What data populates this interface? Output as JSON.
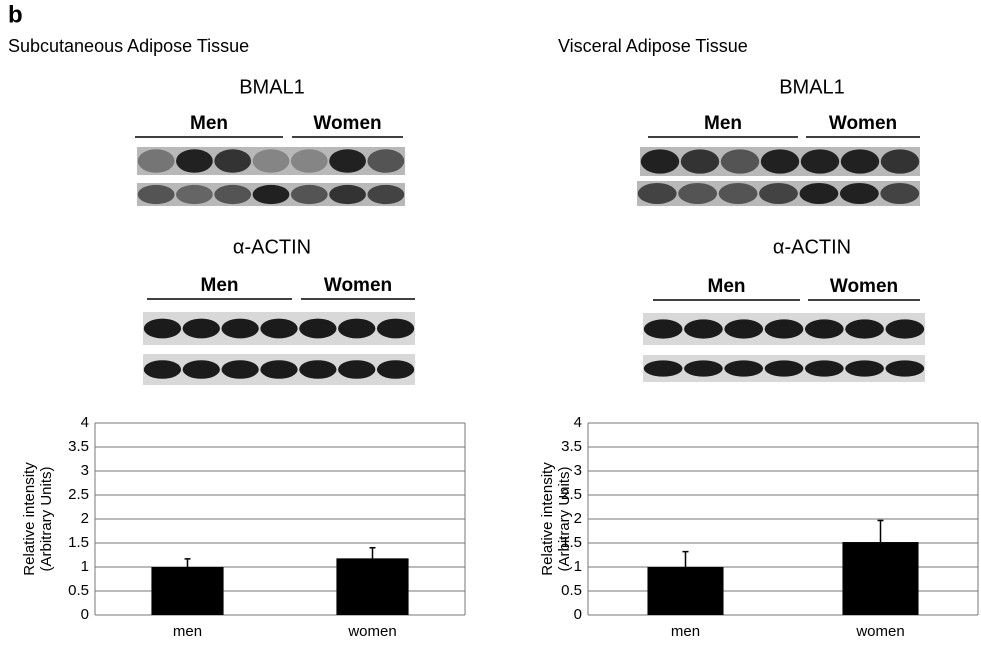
{
  "panel_label": "b",
  "sections": [
    {
      "title": "Subcutaneous Adipose Tissue",
      "blots": [
        {
          "protein": "BMAL1",
          "groups": [
            "Men",
            "Women"
          ]
        },
        {
          "protein": "α-ACTIN",
          "groups": [
            "Men",
            "Women"
          ]
        }
      ]
    },
    {
      "title": "Visceral Adipose Tissue",
      "blots": [
        {
          "protein": "BMAL1",
          "groups": [
            "Men",
            "Women"
          ]
        },
        {
          "protein": "α-ACTIN",
          "groups": [
            "Men",
            "Women"
          ]
        }
      ]
    }
  ],
  "chart_data": [
    {
      "type": "bar",
      "ylabel": [
        "Relative intensity",
        "(Arbitrary Units)"
      ],
      "categories": [
        "men",
        "women"
      ],
      "values": [
        1.0,
        1.18
      ],
      "errors": [
        0.17,
        0.22
      ],
      "color": "#000000",
      "ylim": [
        0,
        4
      ],
      "yticks": [
        0,
        0.5,
        1,
        1.5,
        2,
        2.5,
        3,
        3.5,
        4
      ],
      "grid": true
    },
    {
      "type": "bar",
      "ylabel": [
        "Relative intensity",
        "(Arbitrary Units)"
      ],
      "categories": [
        "men",
        "women"
      ],
      "values": [
        1.0,
        1.52
      ],
      "errors": [
        0.32,
        0.45
      ],
      "color": "#000000",
      "ylim": [
        0,
        4
      ],
      "yticks": [
        0,
        0.5,
        1,
        1.5,
        2,
        2.5,
        3,
        3.5,
        4
      ],
      "grid": true
    }
  ]
}
